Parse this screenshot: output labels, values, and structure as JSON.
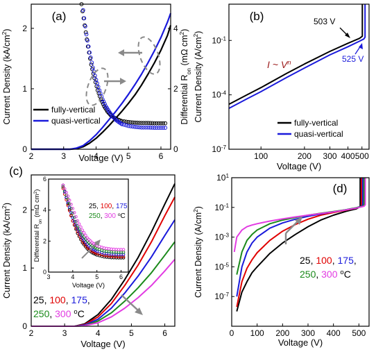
{
  "figure": {
    "colors": {
      "black": "#000000",
      "blue": "#1a1adb",
      "red": "#e00000",
      "green": "#1b8a1b",
      "magenta": "#e23be2",
      "darkred": "#9b1a1a",
      "gray": "#8a8a8a"
    }
  },
  "chart_data": [
    {
      "id": "a",
      "panel_label": "(a)",
      "type": "line",
      "xlabel": "Voltage (V)",
      "ylabel": "Current Density (kA/cm",
      "ylabel_sup": "2",
      "ylabel_tail": ")",
      "y2label": "Differential R",
      "y2label_sub": "on",
      "y2label_tail": " (mΩ cm",
      "y2label_sup": "2",
      "y2label_end": ")",
      "xlim": [
        2,
        6.3
      ],
      "ylim": [
        0,
        2.4
      ],
      "y2lim": [
        0,
        4.8
      ],
      "xticks": [
        "2",
        "3",
        "4",
        "5",
        "6"
      ],
      "yticks": [
        "0",
        "1",
        "2"
      ],
      "y2ticks": [
        "0",
        "2",
        "4"
      ],
      "legend": [
        "fully-vertical",
        "quasi-vertical"
      ],
      "series": [
        {
          "name": "fully-vertical",
          "color": "black",
          "axis": "left",
          "style": "line",
          "x": [
            2,
            3.2,
            3.4,
            3.6,
            3.8,
            4.0,
            4.2,
            4.4,
            4.6,
            4.8,
            5.0,
            5.2,
            5.4,
            5.6,
            5.8,
            6.0,
            6.2,
            6.3
          ],
          "y": [
            0,
            0,
            0.01,
            0.04,
            0.1,
            0.18,
            0.28,
            0.39,
            0.51,
            0.63,
            0.76,
            0.9,
            1.06,
            1.24,
            1.43,
            1.64,
            1.88,
            2.05
          ]
        },
        {
          "name": "quasi-vertical",
          "color": "blue",
          "axis": "left",
          "style": "line",
          "x": [
            2,
            3.2,
            3.4,
            3.6,
            3.8,
            4.0,
            4.2,
            4.4,
            4.6,
            4.8,
            5.0,
            5.2,
            5.4,
            5.6,
            5.8,
            6.0,
            6.2,
            6.3
          ],
          "y": [
            0,
            0,
            0.02,
            0.06,
            0.14,
            0.24,
            0.36,
            0.49,
            0.62,
            0.76,
            0.91,
            1.07,
            1.24,
            1.43,
            1.63,
            1.85,
            2.1,
            2.25
          ]
        },
        {
          "name": "fully-vertical",
          "color": "black",
          "axis": "right",
          "style": "markers",
          "x": [
            3.55,
            3.65,
            3.75,
            3.85,
            3.95,
            4.05,
            4.15,
            4.25,
            4.35,
            4.45,
            4.55,
            4.65,
            4.8,
            5.0,
            5.2,
            5.4,
            5.6,
            5.8,
            6.0,
            6.2
          ],
          "y": [
            4.8,
            4.1,
            3.4,
            2.8,
            2.35,
            1.95,
            1.65,
            1.42,
            1.25,
            1.13,
            1.05,
            0.99,
            0.93,
            0.9,
            0.88,
            0.87,
            0.87,
            0.86,
            0.86,
            0.86
          ]
        },
        {
          "name": "quasi-vertical",
          "color": "blue",
          "axis": "right",
          "style": "markers",
          "x": [
            3.6,
            3.7,
            3.8,
            3.9,
            4.0,
            4.1,
            4.2,
            4.3,
            4.4,
            4.5,
            4.6,
            4.7,
            4.8,
            5.0,
            5.2,
            5.4,
            5.6,
            5.8,
            6.0,
            6.2
          ],
          "y": [
            4.6,
            3.8,
            3.2,
            2.7,
            2.3,
            1.95,
            1.65,
            1.42,
            1.25,
            1.1,
            0.98,
            0.9,
            0.83,
            0.77,
            0.74,
            0.72,
            0.72,
            0.71,
            0.71,
            0.71
          ]
        }
      ]
    },
    {
      "id": "b",
      "panel_label": "(b)",
      "type": "line",
      "scale": "log-log",
      "xlabel": "Voltage (V)",
      "ylabel": "Current Density (A/cm",
      "ylabel_sup": "2",
      "ylabel_tail": ")",
      "xlim": [
        60,
        560
      ],
      "ylim": [
        1e-07,
        10
      ],
      "xticks": [
        "100",
        "200",
        "300",
        "400",
        "500"
      ],
      "ytick_base": "10",
      "ytick_exps": [
        "-7",
        "-4",
        "-1"
      ],
      "legend": [
        "fully-vertical",
        "quasi-vertical"
      ],
      "annotations": {
        "black_breakdown": "503 V",
        "blue_breakdown": "525 V",
        "power_law": "I ~ V",
        "power_law_sup": "n"
      },
      "series": [
        {
          "name": "fully-vertical",
          "color": "black",
          "x": [
            60,
            80,
            100,
            150,
            200,
            300,
            400,
            480,
            503,
            503
          ],
          "y": [
            3e-05,
            0.0001,
            0.00025,
            0.0015,
            0.005,
            0.025,
            0.07,
            0.13,
            0.17,
            10
          ]
        },
        {
          "name": "quasi-vertical",
          "color": "blue",
          "x": [
            60,
            80,
            100,
            150,
            200,
            300,
            400,
            480,
            515,
            525,
            525
          ],
          "y": [
            1.8e-05,
            6e-05,
            0.00015,
            0.0009,
            0.003,
            0.016,
            0.045,
            0.09,
            0.12,
            0.15,
            10
          ]
        }
      ]
    },
    {
      "id": "c",
      "panel_label": "(c)",
      "type": "line",
      "xlabel": "Voltage (V)",
      "ylabel": "Current Density (kA/cm",
      "ylabel_sup": "2",
      "ylabel_tail": ")",
      "xlim": [
        2,
        6.3
      ],
      "ylim": [
        0,
        2.6
      ],
      "xticks": [
        "2",
        "3",
        "4",
        "5",
        "6"
      ],
      "yticks": [
        "0",
        "1",
        "2"
      ],
      "legend_temps": [
        "25",
        "100",
        "175",
        "250",
        "300"
      ],
      "legend_unit": "C",
      "legend_unit_sup": "o",
      "series": [
        {
          "name": "25",
          "color": "black",
          "x": [
            2,
            3.3,
            3.6,
            4.0,
            4.4,
            4.8,
            5.2,
            5.6,
            6.0,
            6.3
          ],
          "y": [
            0,
            0,
            0.04,
            0.2,
            0.46,
            0.8,
            1.18,
            1.62,
            2.1,
            2.45
          ]
        },
        {
          "name": "100",
          "color": "red",
          "x": [
            2,
            3.3,
            3.6,
            4.0,
            4.4,
            4.8,
            5.2,
            5.6,
            6.0,
            6.3
          ],
          "y": [
            0,
            0,
            0.03,
            0.16,
            0.39,
            0.7,
            1.05,
            1.45,
            1.9,
            2.22
          ]
        },
        {
          "name": "175",
          "color": "blue",
          "x": [
            2,
            3.3,
            3.6,
            4.0,
            4.4,
            4.8,
            5.2,
            5.6,
            6.0,
            6.3
          ],
          "y": [
            0,
            0,
            0.02,
            0.12,
            0.31,
            0.57,
            0.86,
            1.19,
            1.56,
            1.83
          ]
        },
        {
          "name": "250",
          "color": "green",
          "x": [
            2,
            3.3,
            3.6,
            4.0,
            4.4,
            4.8,
            5.2,
            5.6,
            6.0,
            6.3
          ],
          "y": [
            0,
            0,
            0.01,
            0.09,
            0.23,
            0.43,
            0.66,
            0.92,
            1.22,
            1.45
          ]
        },
        {
          "name": "300",
          "color": "magenta",
          "x": [
            2,
            3.3,
            3.6,
            4.0,
            4.4,
            4.8,
            5.2,
            5.6,
            6.0,
            6.3
          ],
          "y": [
            0,
            0,
            0.01,
            0.06,
            0.16,
            0.31,
            0.49,
            0.7,
            0.95,
            1.15
          ]
        }
      ],
      "inset": {
        "ylabel": "Differential R",
        "ylabel_sub": "on",
        "ylabel_tail": " (mΩ cm",
        "ylabel_sup": "2",
        "ylabel_end": ")",
        "xlabel": "Voltage (V)",
        "xlim": [
          3,
          6.3
        ],
        "ylim": [
          0,
          6
        ],
        "xticks": [
          "3",
          "4",
          "5",
          "6"
        ],
        "yticks": [
          "0",
          "2",
          "4",
          "6"
        ],
        "series": [
          {
            "name": "25",
            "color": "black",
            "x": [
              3.6,
              3.8,
              4.0,
              4.2,
              4.4,
              4.6,
              4.8,
              5.0,
              5.3,
              5.6,
              5.9,
              6.2
            ],
            "y": [
              5.6,
              4.4,
              3.3,
              2.5,
              1.9,
              1.5,
              1.25,
              1.1,
              0.98,
              0.93,
              0.92,
              0.92
            ]
          },
          {
            "name": "100",
            "color": "red",
            "x": [
              3.6,
              3.8,
              4.0,
              4.2,
              4.4,
              4.6,
              4.8,
              5.0,
              5.3,
              5.6,
              5.9,
              6.2
            ],
            "y": [
              5.4,
              4.3,
              3.3,
              2.6,
              2.0,
              1.6,
              1.35,
              1.2,
              1.08,
              1.02,
              1.0,
              1.0
            ]
          },
          {
            "name": "175",
            "color": "blue",
            "x": [
              3.6,
              3.8,
              4.0,
              4.2,
              4.4,
              4.6,
              4.8,
              5.0,
              5.3,
              5.6,
              5.9,
              6.2
            ],
            "y": [
              5.5,
              4.5,
              3.5,
              2.8,
              2.2,
              1.8,
              1.5,
              1.35,
              1.22,
              1.16,
              1.14,
              1.14
            ]
          },
          {
            "name": "250",
            "color": "green",
            "x": [
              3.6,
              3.8,
              4.0,
              4.2,
              4.4,
              4.6,
              4.8,
              5.0,
              5.3,
              5.6,
              5.9,
              6.2
            ],
            "y": [
              5.5,
              4.7,
              3.8,
              3.0,
              2.4,
              2.0,
              1.7,
              1.5,
              1.36,
              1.3,
              1.28,
              1.28
            ]
          },
          {
            "name": "300",
            "color": "magenta",
            "x": [
              3.6,
              3.8,
              4.0,
              4.2,
              4.4,
              4.6,
              4.8,
              5.0,
              5.3,
              5.6,
              5.9,
              6.2
            ],
            "y": [
              5.6,
              4.9,
              4.1,
              3.3,
              2.7,
              2.2,
              1.9,
              1.7,
              1.55,
              1.48,
              1.45,
              1.45
            ]
          }
        ]
      }
    },
    {
      "id": "d",
      "panel_label": "(d)",
      "type": "line",
      "scale": "semilog-y",
      "xlabel": "Voltage (V)",
      "ylabel": "Current Density (A/cm",
      "ylabel_sup": "2",
      "ylabel_tail": ")",
      "xlim": [
        0,
        540
      ],
      "ylim": [
        1e-09,
        10
      ],
      "xticks": [
        "0",
        "100",
        "200",
        "300",
        "400",
        "500"
      ],
      "ytick_base": "10",
      "ytick_exps": [
        "1",
        "-1",
        "-3",
        "-5",
        "-7"
      ],
      "legend_temps": [
        "25",
        "100",
        "175",
        "250",
        "300"
      ],
      "legend_unit": "C",
      "legend_unit_sup": "o",
      "series": [
        {
          "name": "25",
          "color": "black",
          "x": [
            20,
            40,
            60,
            80,
            100,
            150,
            200,
            250,
            300,
            350,
            400,
            450,
            490,
            500,
            505,
            505
          ],
          "y": [
            1e-08,
            2e-07,
            1e-06,
            4e-06,
            1e-05,
            8e-05,
            0.0004,
            0.0015,
            0.005,
            0.014,
            0.03,
            0.055,
            0.08,
            0.1,
            0.12,
            10
          ]
        },
        {
          "name": "100",
          "color": "red",
          "x": [
            20,
            40,
            60,
            80,
            100,
            150,
            200,
            250,
            300,
            350,
            400,
            450,
            490,
            505,
            510,
            510
          ],
          "y": [
            2e-08,
            1e-06,
            8e-06,
            3e-05,
            9e-05,
            0.0006,
            0.0025,
            0.007,
            0.016,
            0.03,
            0.045,
            0.065,
            0.09,
            0.11,
            0.13,
            10
          ]
        },
        {
          "name": "175",
          "color": "blue",
          "x": [
            20,
            40,
            60,
            80,
            100,
            150,
            200,
            250,
            300,
            350,
            400,
            450,
            490,
            510,
            515,
            515
          ],
          "y": [
            1e-07,
            1e-05,
            0.0001,
            0.0004,
            0.001,
            0.004,
            0.009,
            0.016,
            0.025,
            0.036,
            0.05,
            0.07,
            0.095,
            0.12,
            0.14,
            10
          ]
        },
        {
          "name": "250",
          "color": "green",
          "x": [
            20,
            40,
            60,
            80,
            100,
            150,
            200,
            250,
            300,
            350,
            400,
            450,
            490,
            515,
            520,
            520
          ],
          "y": [
            3e-06,
            0.0001,
            0.0006,
            0.0015,
            0.003,
            0.008,
            0.014,
            0.021,
            0.03,
            0.04,
            0.053,
            0.07,
            0.095,
            0.12,
            0.14,
            10
          ]
        },
        {
          "name": "300",
          "color": "magenta",
          "x": [
            10,
            20,
            40,
            60,
            80,
            100,
            150,
            200,
            250,
            300,
            350,
            400,
            450,
            490,
            520,
            525,
            525
          ],
          "y": [
            0.0001,
            0.001,
            0.003,
            0.005,
            0.0065,
            0.008,
            0.012,
            0.017,
            0.023,
            0.03,
            0.039,
            0.05,
            0.068,
            0.09,
            0.12,
            0.15,
            10
          ]
        }
      ]
    }
  ]
}
